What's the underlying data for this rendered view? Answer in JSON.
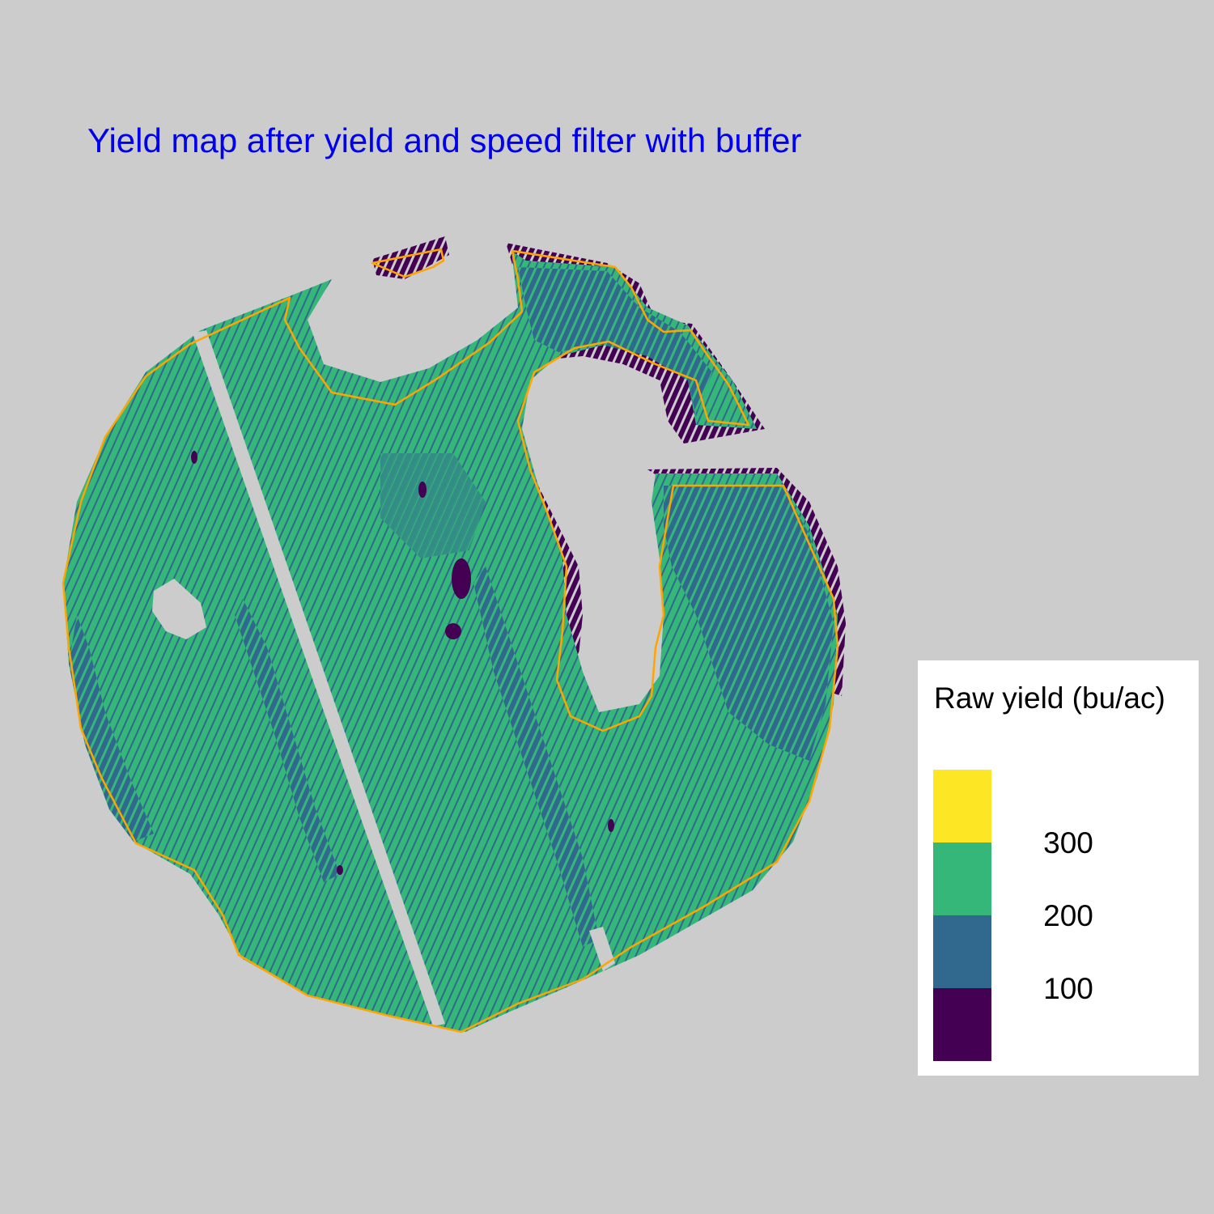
{
  "title": "Yield map after yield and speed filter with buffer",
  "legend": {
    "title": "Raw yield (bu/ac)",
    "bins": [
      {
        "range": "300+",
        "color": "#fde725"
      },
      {
        "range": "200-300",
        "color": "#35b779"
      },
      {
        "range": "100-200",
        "color": "#31688e"
      },
      {
        "range": "0-100",
        "color": "#440154"
      }
    ],
    "ticks": [
      "300",
      "200",
      "100"
    ]
  },
  "colors": {
    "background": "#cccccc",
    "boundary": "#ffa500",
    "title": "#0000ee"
  }
}
